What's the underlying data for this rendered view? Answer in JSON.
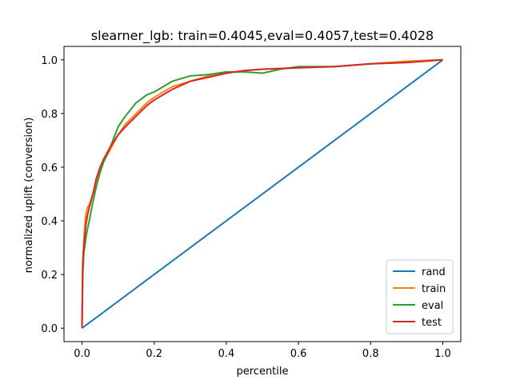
{
  "chart_data": {
    "type": "line",
    "title": "slearner_lgb: train=0.4045,eval=0.4057,test=0.4028",
    "xlabel": "percentile",
    "ylabel": "normalized uplift (conversion)",
    "xlim": [
      -0.05,
      1.05
    ],
    "ylim": [
      -0.05,
      1.05
    ],
    "xticks": [
      0.0,
      0.2,
      0.4,
      0.6,
      0.8,
      1.0
    ],
    "xtick_labels": [
      "0.0",
      "0.2",
      "0.4",
      "0.6",
      "0.8",
      "1.0"
    ],
    "yticks": [
      0.0,
      0.2,
      0.4,
      0.6,
      0.8,
      1.0
    ],
    "ytick_labels": [
      "0.0",
      "0.2",
      "0.4",
      "0.6",
      "0.8",
      "1.0"
    ],
    "grid": false,
    "legend_position": "lower-right",
    "series": [
      {
        "name": "rand",
        "color": "#1f77b4",
        "x": [
          0.0,
          1.0
        ],
        "y": [
          0.0,
          1.0
        ]
      },
      {
        "name": "train",
        "color": "#ff7f0e",
        "x": [
          0.0,
          0.002,
          0.005,
          0.01,
          0.015,
          0.02,
          0.03,
          0.04,
          0.05,
          0.06,
          0.08,
          0.1,
          0.12,
          0.15,
          0.18,
          0.2,
          0.25,
          0.3,
          0.35,
          0.4,
          0.45,
          0.5,
          0.6,
          0.7,
          0.8,
          0.9,
          1.0
        ],
        "y": [
          0.0,
          0.25,
          0.33,
          0.42,
          0.45,
          0.46,
          0.5,
          0.55,
          0.59,
          0.62,
          0.67,
          0.72,
          0.76,
          0.8,
          0.84,
          0.86,
          0.9,
          0.92,
          0.94,
          0.95,
          0.96,
          0.965,
          0.97,
          0.975,
          0.985,
          0.995,
          1.0
        ]
      },
      {
        "name": "eval",
        "color": "#2ca02c",
        "x": [
          0.0,
          0.002,
          0.005,
          0.01,
          0.015,
          0.02,
          0.03,
          0.04,
          0.05,
          0.06,
          0.08,
          0.1,
          0.12,
          0.15,
          0.18,
          0.2,
          0.25,
          0.3,
          0.35,
          0.4,
          0.45,
          0.5,
          0.55,
          0.6,
          0.7,
          0.8,
          0.9,
          1.0
        ],
        "y": [
          0.0,
          0.2,
          0.28,
          0.33,
          0.37,
          0.4,
          0.47,
          0.53,
          0.58,
          0.62,
          0.68,
          0.75,
          0.79,
          0.84,
          0.87,
          0.88,
          0.92,
          0.94,
          0.945,
          0.955,
          0.955,
          0.95,
          0.965,
          0.975,
          0.975,
          0.985,
          0.99,
          1.0
        ]
      },
      {
        "name": "test",
        "color": "#d62728",
        "x": [
          0.0,
          0.002,
          0.005,
          0.01,
          0.015,
          0.02,
          0.03,
          0.04,
          0.05,
          0.06,
          0.08,
          0.1,
          0.12,
          0.15,
          0.18,
          0.2,
          0.25,
          0.3,
          0.35,
          0.4,
          0.45,
          0.5,
          0.6,
          0.7,
          0.8,
          0.9,
          1.0
        ],
        "y": [
          0.0,
          0.22,
          0.3,
          0.38,
          0.42,
          0.45,
          0.5,
          0.56,
          0.6,
          0.63,
          0.68,
          0.72,
          0.75,
          0.79,
          0.83,
          0.85,
          0.89,
          0.92,
          0.935,
          0.95,
          0.96,
          0.965,
          0.97,
          0.975,
          0.985,
          0.99,
          1.0
        ]
      }
    ]
  }
}
